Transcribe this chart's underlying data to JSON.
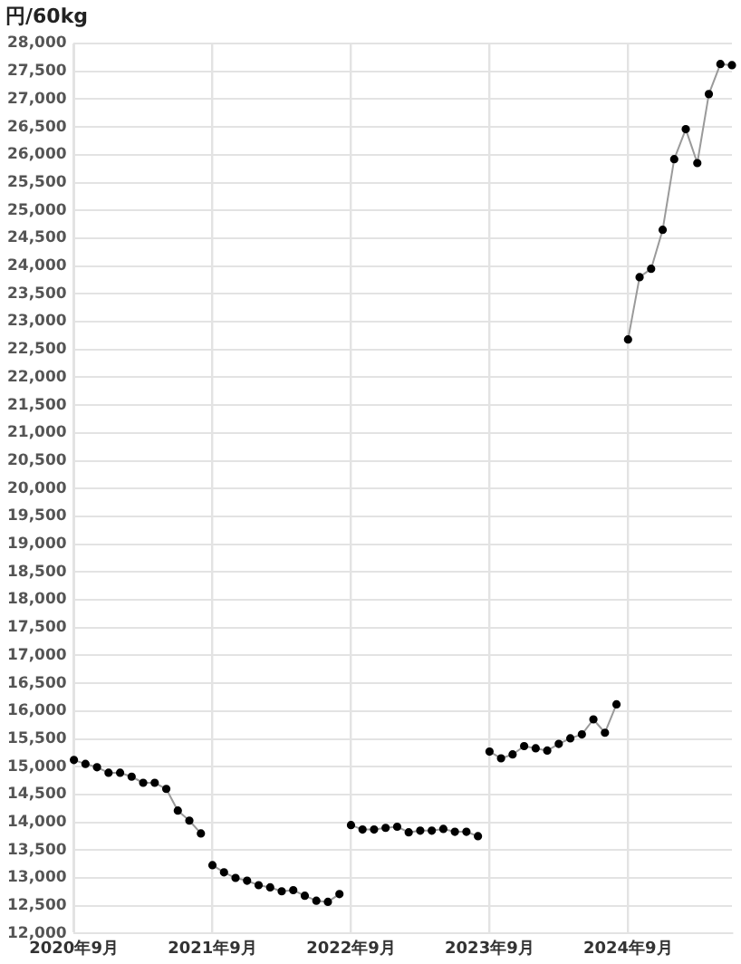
{
  "chart_data": {
    "type": "line",
    "ylabel": "円/60kg",
    "xlim": [
      "2020-09",
      "2025-06"
    ],
    "xticks": [
      {
        "value": "2020-09",
        "label": "2020年9月"
      },
      {
        "value": "2021-09",
        "label": "2021年9月"
      },
      {
        "value": "2022-09",
        "label": "2022年9月"
      },
      {
        "value": "2023-09",
        "label": "2023年9月"
      },
      {
        "value": "2024-09",
        "label": "2024年9月"
      }
    ],
    "ylim": [
      12000,
      28000
    ],
    "yticks": [
      {
        "value": 12000,
        "label": "12,000"
      },
      {
        "value": 12500,
        "label": "12,500"
      },
      {
        "value": 13000,
        "label": "13,000"
      },
      {
        "value": 13500,
        "label": "13,500"
      },
      {
        "value": 14000,
        "label": "14,000"
      },
      {
        "value": 14500,
        "label": "14,500"
      },
      {
        "value": 15000,
        "label": "15,000"
      },
      {
        "value": 15500,
        "label": "15,500"
      },
      {
        "value": 16000,
        "label": "16,000"
      },
      {
        "value": 16500,
        "label": "16,500"
      },
      {
        "value": 17000,
        "label": "17,000"
      },
      {
        "value": 17500,
        "label": "17,500"
      },
      {
        "value": 18000,
        "label": "18,000"
      },
      {
        "value": 18500,
        "label": "18,500"
      },
      {
        "value": 19000,
        "label": "19,000"
      },
      {
        "value": 19500,
        "label": "19,500"
      },
      {
        "value": 20000,
        "label": "20,000"
      },
      {
        "value": 20500,
        "label": "20,500"
      },
      {
        "value": 21000,
        "label": "21,000"
      },
      {
        "value": 21500,
        "label": "21,500"
      },
      {
        "value": 22000,
        "label": "22,000"
      },
      {
        "value": 22500,
        "label": "22,500"
      },
      {
        "value": 23000,
        "label": "23,000"
      },
      {
        "value": 23500,
        "label": "23,500"
      },
      {
        "value": 24000,
        "label": "24,000"
      },
      {
        "value": 24500,
        "label": "24,500"
      },
      {
        "value": 25000,
        "label": "25,000"
      },
      {
        "value": 25500,
        "label": "25,500"
      },
      {
        "value": 26000,
        "label": "26,000"
      },
      {
        "value": 26500,
        "label": "26,500"
      },
      {
        "value": 27000,
        "label": "27,000"
      },
      {
        "value": 27500,
        "label": "27,500"
      },
      {
        "value": 28000,
        "label": "28,000"
      }
    ],
    "grid": true,
    "marker": "circle",
    "line_style": "solid",
    "series": [
      {
        "color": "#000000",
        "x": [
          "2020-09",
          "2020-10",
          "2020-11",
          "2020-12",
          "2021-01",
          "2021-02",
          "2021-03",
          "2021-04",
          "2021-05",
          "2021-06",
          "2021-07",
          "2021-08"
        ],
        "values": [
          15120,
          15050,
          14990,
          14890,
          14890,
          14820,
          14710,
          14710,
          14600,
          14210,
          14030,
          13800
        ]
      },
      {
        "color": "#000000",
        "x": [
          "2021-09",
          "2021-10",
          "2021-11",
          "2021-12",
          "2022-01",
          "2022-02",
          "2022-03",
          "2022-04",
          "2022-05",
          "2022-06",
          "2022-07",
          "2022-08"
        ],
        "values": [
          13230,
          13100,
          13000,
          12950,
          12870,
          12830,
          12760,
          12780,
          12680,
          12590,
          12570,
          12710
        ]
      },
      {
        "color": "#000000",
        "x": [
          "2022-09",
          "2022-10",
          "2022-11",
          "2022-12",
          "2023-01",
          "2023-02",
          "2023-03",
          "2023-04",
          "2023-05",
          "2023-06",
          "2023-07",
          "2023-08"
        ],
        "values": [
          13950,
          13870,
          13870,
          13900,
          13920,
          13820,
          13850,
          13850,
          13880,
          13830,
          13830,
          13750
        ]
      },
      {
        "color": "#000000",
        "x": [
          "2023-09",
          "2023-10",
          "2023-11",
          "2023-12",
          "2024-01",
          "2024-02",
          "2024-03",
          "2024-04",
          "2024-05",
          "2024-06",
          "2024-07",
          "2024-08"
        ],
        "values": [
          15270,
          15150,
          15220,
          15370,
          15330,
          15290,
          15410,
          15510,
          15580,
          15850,
          15610,
          16120
        ]
      },
      {
        "color": "#000000",
        "x": [
          "2024-09",
          "2024-10",
          "2024-11",
          "2024-12",
          "2025-01",
          "2025-02",
          "2025-03",
          "2025-04",
          "2025-05",
          "2025-06"
        ],
        "values": [
          22680,
          23800,
          23950,
          24650,
          25920,
          26460,
          25850,
          27090,
          27630,
          27610
        ]
      }
    ]
  }
}
